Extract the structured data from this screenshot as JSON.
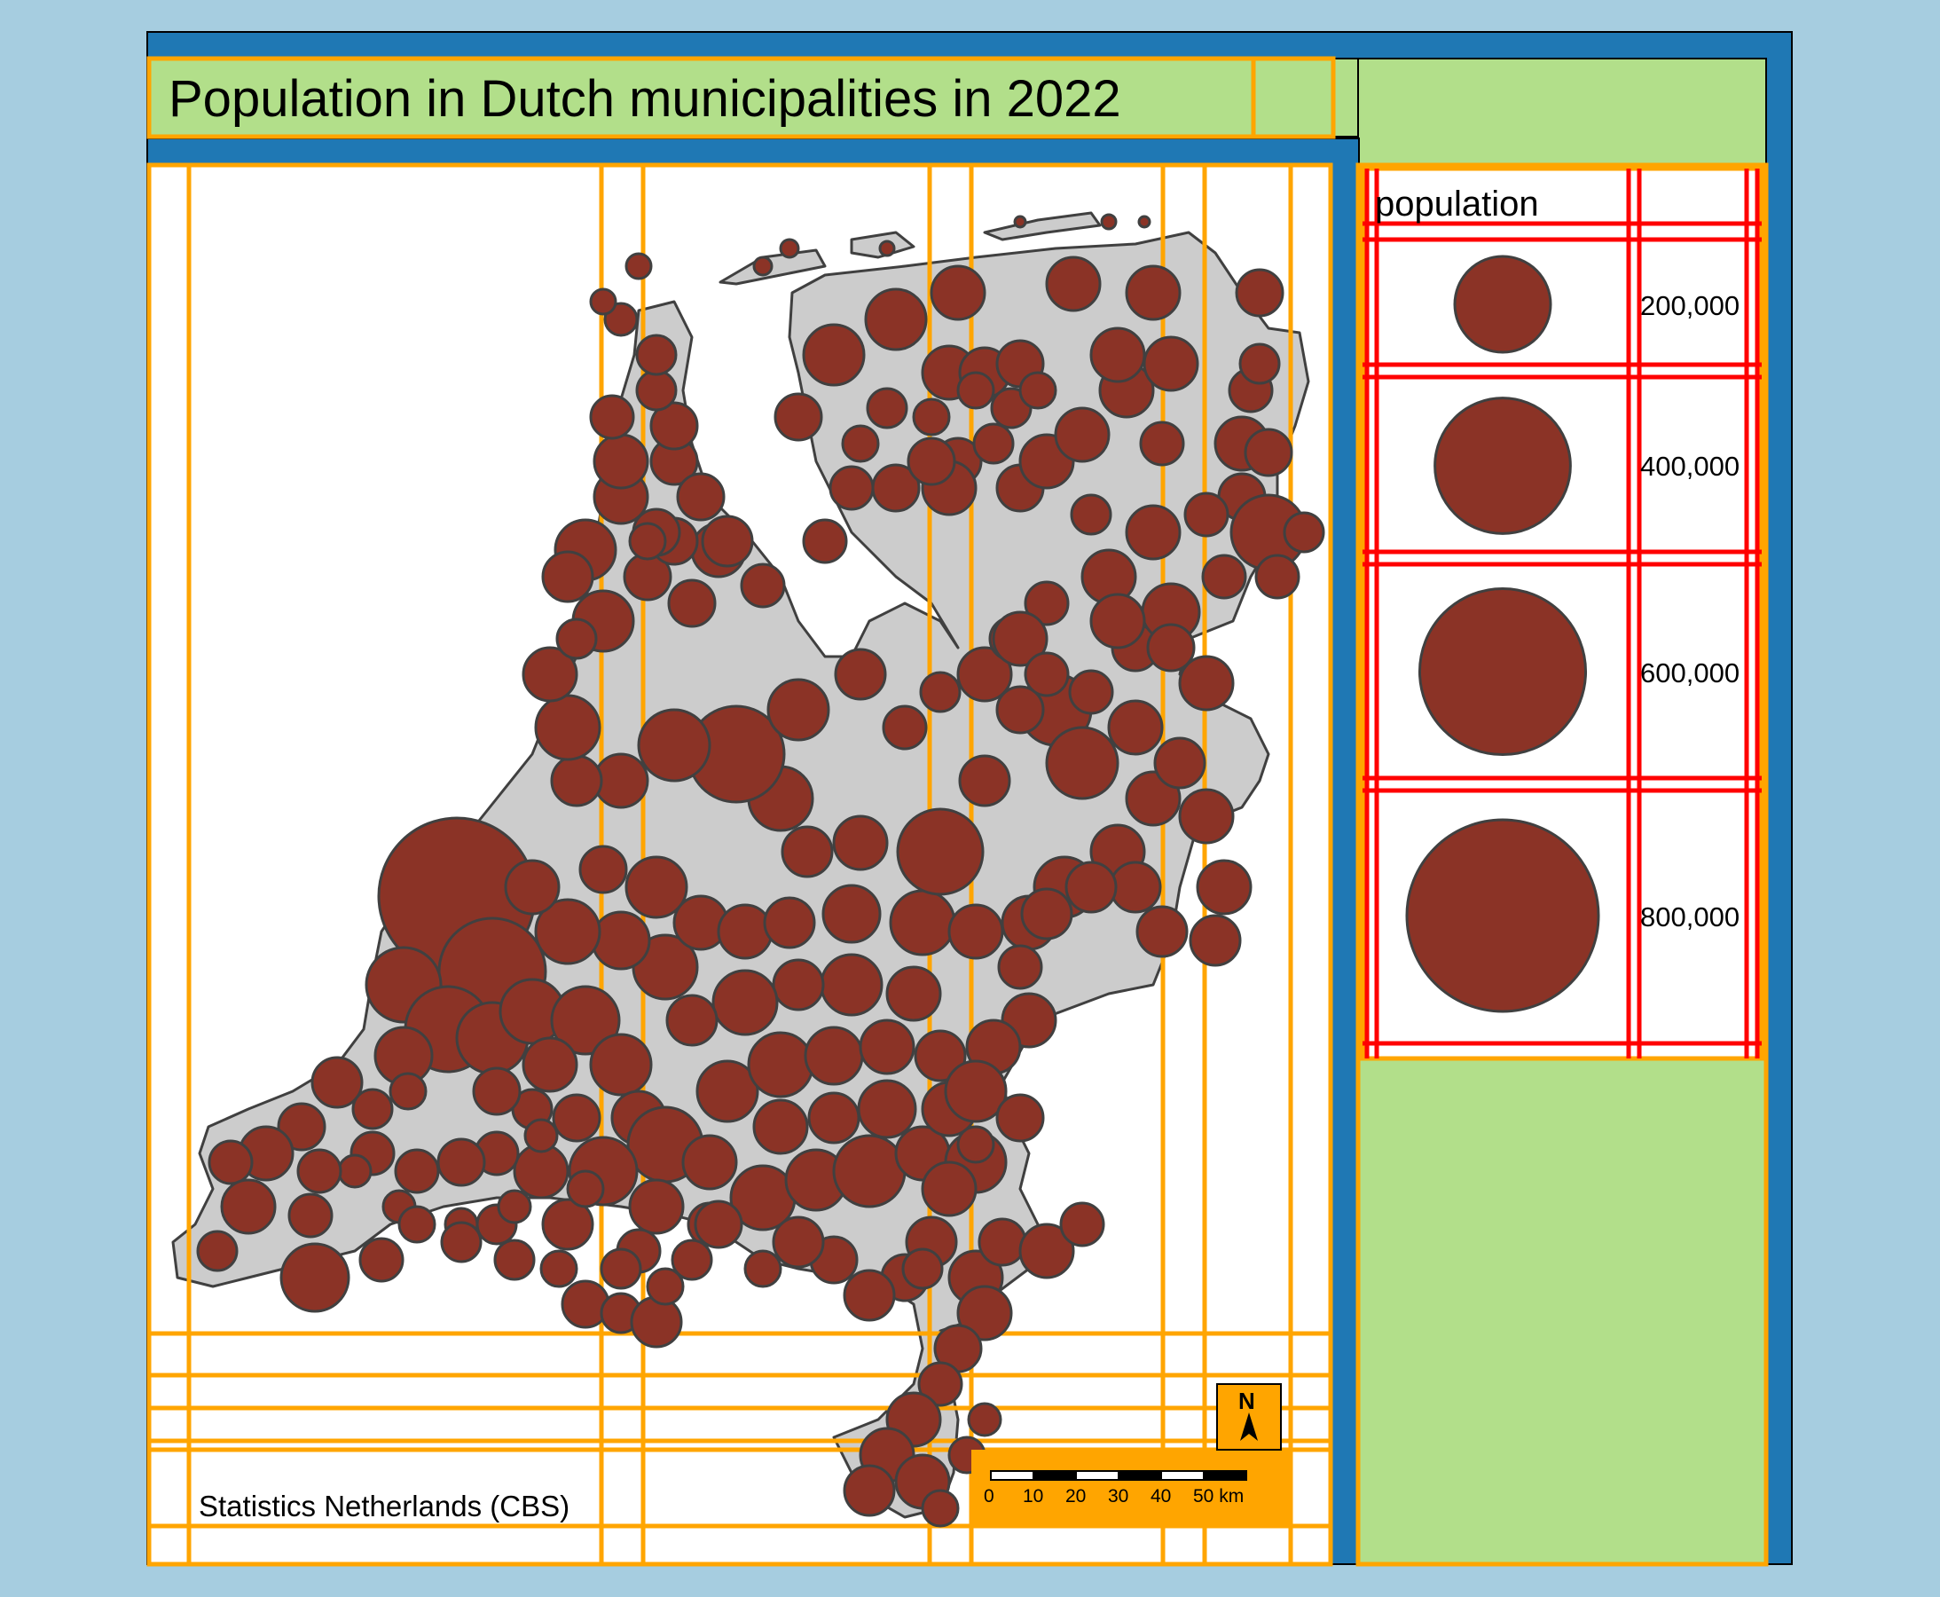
{
  "title": "Population in Dutch municipalities in 2022",
  "legend": {
    "title": "population",
    "items": [
      {
        "label": "200,000",
        "value": 200000
      },
      {
        "label": "400,000",
        "value": 400000
      },
      {
        "label": "600,000",
        "value": 600000
      },
      {
        "label": "800,000",
        "value": 800000
      }
    ]
  },
  "credits": "Statistics Netherlands (CBS)",
  "scalebar": {
    "labels": [
      "0",
      "10",
      "20",
      "30",
      "40",
      "50 km"
    ]
  },
  "compass": {
    "letter": "N"
  },
  "colors": {
    "background": "#a6cde0",
    "frame_blue": "#1f78b4",
    "panel_green": "#b2df8a",
    "land": "#cccccc",
    "bubble": "#8b3326",
    "grid_orange": "#ffa500",
    "grid_red": "#ff0000"
  }
}
